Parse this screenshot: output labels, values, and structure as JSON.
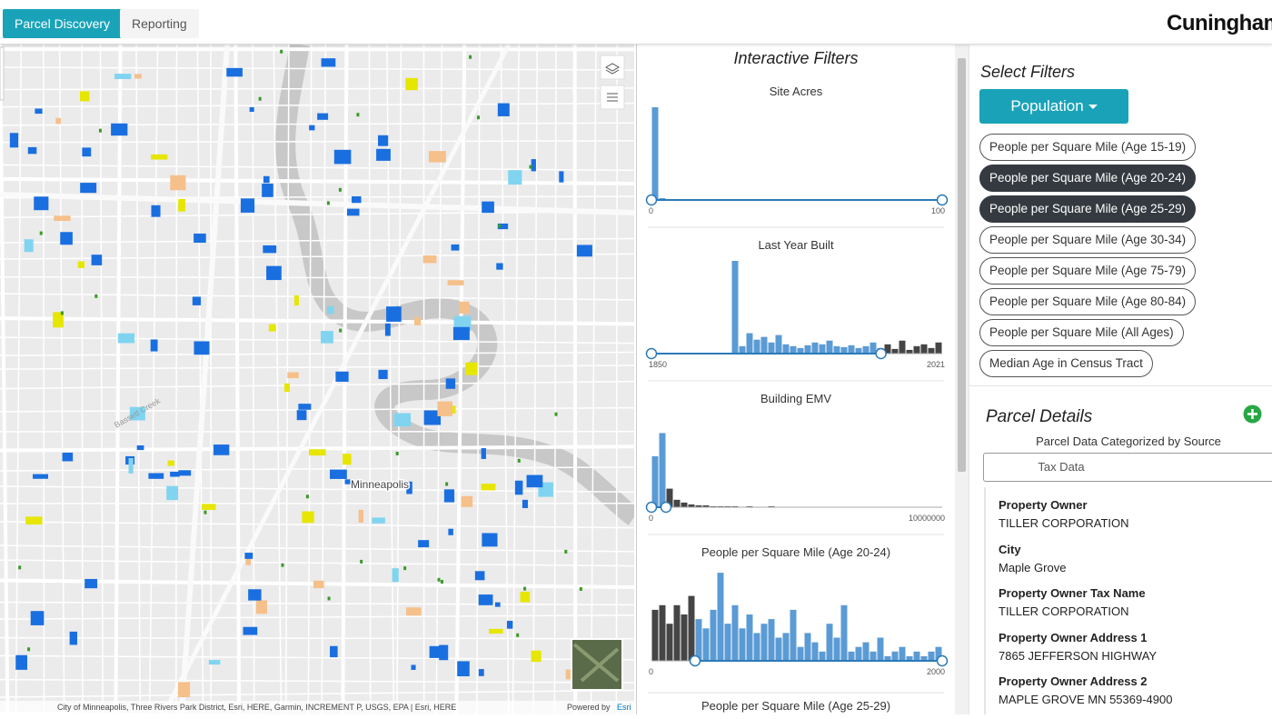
{
  "nav": {
    "tabs": [
      "Parcel Discovery",
      "Reporting"
    ],
    "brand": "Cuningham"
  },
  "map": {
    "city_label": "Minneapolis",
    "creek_label": "Bassett Creek",
    "attribution": "City of Minneapolis, Three Rivers Park District, Esri, HERE, Garmin, INCREMENT P, USGS, EPA | Esri, HERE",
    "powered_by": "Powered by",
    "esri": "Esri"
  },
  "filters": {
    "title": "Interactive Filters",
    "histograms": [
      {
        "title": "Site Acres",
        "min": 0,
        "max": 100,
        "range": [
          0,
          100
        ],
        "ylim": [
          0,
          100
        ],
        "counts": [
          100,
          2,
          1,
          1,
          0,
          0,
          0,
          0,
          0,
          0,
          0,
          0,
          0,
          0,
          0,
          0,
          0,
          0,
          0,
          0,
          0,
          0,
          0,
          0,
          0,
          0,
          0,
          0,
          0,
          0,
          0,
          0,
          0,
          0,
          0,
          0,
          0,
          0,
          0,
          0
        ]
      },
      {
        "title": "Last Year Built",
        "min": 1850,
        "max": 2021,
        "range": [
          1850,
          1985
        ],
        "ylim": [
          0,
          100
        ],
        "counts": [
          0,
          0,
          0,
          0,
          0,
          0,
          0,
          0,
          0,
          0,
          0,
          100,
          8,
          22,
          15,
          18,
          12,
          20,
          10,
          8,
          6,
          9,
          12,
          10,
          14,
          8,
          7,
          9,
          6,
          8,
          12,
          6,
          10,
          5,
          14,
          4,
          8,
          10,
          6,
          12
        ]
      },
      {
        "title": "Building EMV",
        "min": 0,
        "max": 10000000,
        "range": [
          0,
          500000
        ],
        "ylim": [
          0,
          100
        ],
        "counts": [
          55,
          80,
          20,
          8,
          5,
          3,
          2,
          2,
          1,
          1,
          1,
          1,
          0,
          1,
          0,
          0,
          1,
          0,
          0,
          0,
          0,
          0,
          0,
          0,
          0,
          0,
          0,
          0,
          0,
          0,
          0,
          0,
          0,
          0,
          0,
          0,
          0,
          0,
          0,
          0
        ]
      },
      {
        "title": "People per Square Mile (Age 20-24)",
        "min": 0,
        "max": 2000,
        "range": [
          300,
          2000
        ],
        "ylim": [
          0,
          100
        ],
        "counts": [
          55,
          60,
          40,
          60,
          50,
          70,
          45,
          35,
          55,
          95,
          40,
          60,
          35,
          50,
          30,
          40,
          45,
          25,
          30,
          55,
          15,
          30,
          20,
          10,
          40,
          25,
          60,
          10,
          15,
          20,
          10,
          25,
          5,
          10,
          15,
          5,
          10,
          5,
          10,
          15
        ]
      },
      {
        "title": "People per Square Mile (Age 25-29)"
      }
    ]
  },
  "select": {
    "title": "Select Filters",
    "dropdown": "Population",
    "options": [
      {
        "label": "People per Square Mile (Age 15-19)",
        "selected": false
      },
      {
        "label": "People per Square Mile (Age 20-24)",
        "selected": true
      },
      {
        "label": "People per Square Mile (Age 25-29)",
        "selected": true
      },
      {
        "label": "People per Square Mile (Age 30-34)",
        "selected": false
      },
      {
        "label": "People per Square Mile (Age 75-79)",
        "selected": false
      },
      {
        "label": "People per Square Mile (Age 80-84)",
        "selected": false
      },
      {
        "label": "People per Square Mile (All Ages)",
        "selected": false
      },
      {
        "label": "Median Age in Census Tract",
        "selected": false
      }
    ]
  },
  "details": {
    "title": "Parcel Details",
    "subtitle": "Parcel Data Categorized by Source",
    "source_button": "Tax Data",
    "fields": [
      {
        "label": "Property Owner",
        "value": "TILLER CORPORATION"
      },
      {
        "label": "City",
        "value": "Maple Grove"
      },
      {
        "label": "Property Owner Tax Name",
        "value": "TILLER CORPORATION"
      },
      {
        "label": "Property Owner Address 1",
        "value": "7865 JEFFERSON HIGHWAY"
      },
      {
        "label": "Property Owner Address 2",
        "value": "MAPLE GROVE MN 55369-4900"
      }
    ]
  }
}
